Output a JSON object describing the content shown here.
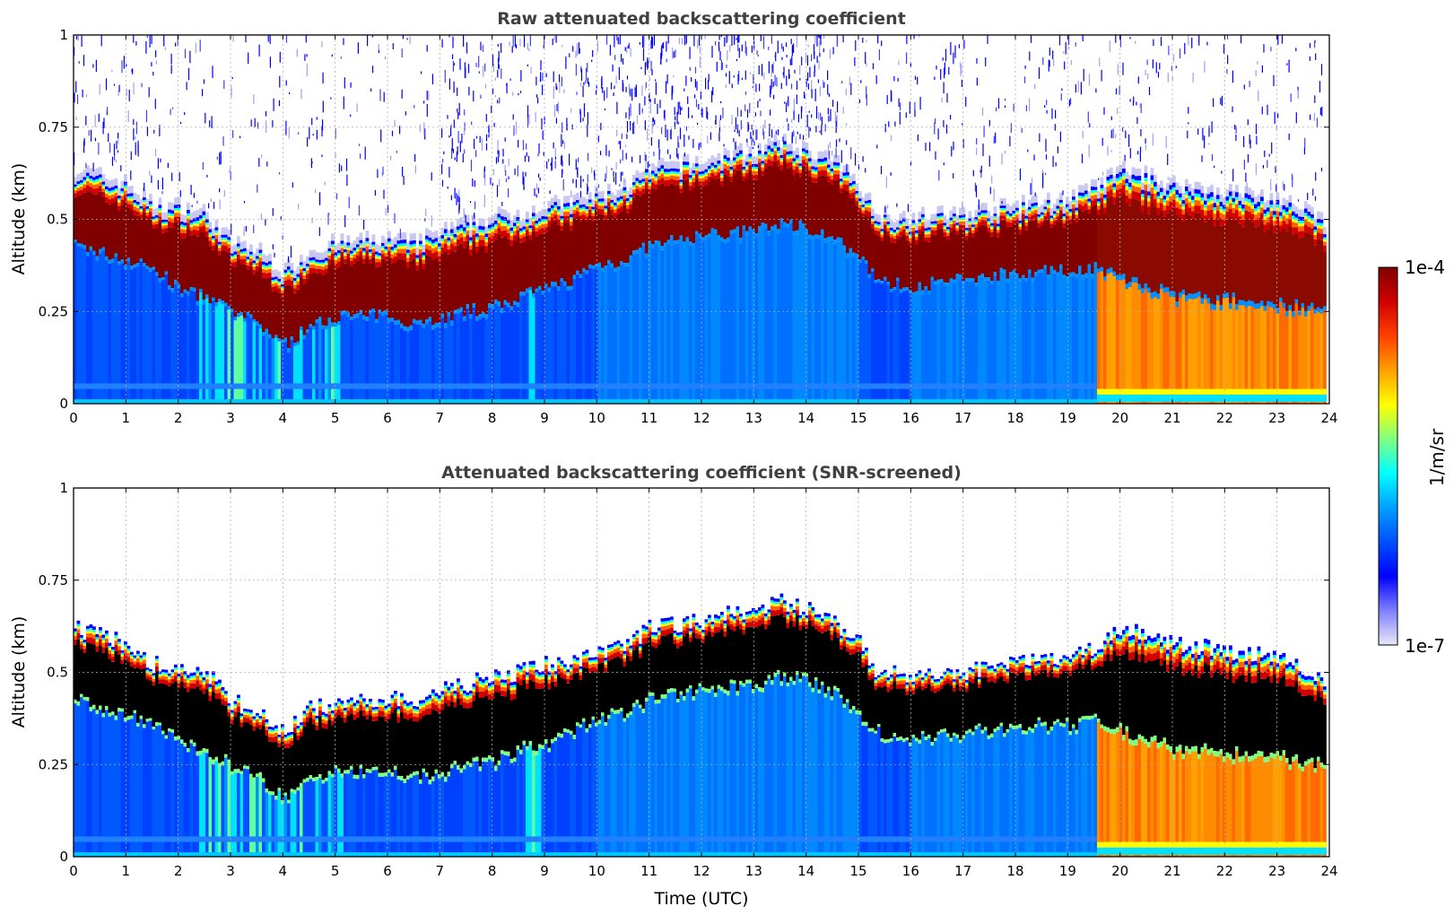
{
  "chart_data": [
    {
      "type": "heatmap",
      "title": "Raw attenuated backscattering coefficient",
      "xlabel": "",
      "ylabel": "Altitude (km)",
      "xlim": [
        0,
        24
      ],
      "ylim": [
        0,
        1
      ],
      "x_ticks": [
        "0",
        "1",
        "2",
        "3",
        "4",
        "5",
        "6",
        "7",
        "8",
        "9",
        "10",
        "11",
        "12",
        "13",
        "14",
        "15",
        "16",
        "17",
        "18",
        "19",
        "20",
        "21",
        "22",
        "23",
        "24"
      ],
      "y_ticks": [
        "0",
        "0.25",
        "0.5",
        "0.75",
        "1"
      ],
      "grid": true,
      "screened": false,
      "layer_top_km": [
        [
          0,
          0.62
        ],
        [
          1,
          0.58
        ],
        [
          1.5,
          0.52
        ],
        [
          2,
          0.52
        ],
        [
          2.5,
          0.5
        ],
        [
          3,
          0.42
        ],
        [
          3.5,
          0.4
        ],
        [
          4,
          0.34
        ],
        [
          4.5,
          0.4
        ],
        [
          5,
          0.42
        ],
        [
          6,
          0.43
        ],
        [
          6.5,
          0.42
        ],
        [
          7,
          0.45
        ],
        [
          7.5,
          0.47
        ],
        [
          8,
          0.49
        ],
        [
          8.5,
          0.5
        ],
        [
          9,
          0.52
        ],
        [
          9.5,
          0.53
        ],
        [
          10,
          0.55
        ],
        [
          10.5,
          0.57
        ],
        [
          11,
          0.62
        ],
        [
          11.5,
          0.63
        ],
        [
          12,
          0.64
        ],
        [
          12.5,
          0.66
        ],
        [
          13,
          0.67
        ],
        [
          13.5,
          0.69
        ],
        [
          14,
          0.67
        ],
        [
          14.5,
          0.64
        ],
        [
          15,
          0.58
        ],
        [
          15.3,
          0.5
        ],
        [
          16,
          0.49
        ],
        [
          17,
          0.5
        ],
        [
          18,
          0.52
        ],
        [
          19,
          0.54
        ],
        [
          19.5,
          0.57
        ],
        [
          20,
          0.62
        ],
        [
          21,
          0.58
        ],
        [
          22,
          0.56
        ],
        [
          23,
          0.54
        ],
        [
          23.9,
          0.48
        ]
      ],
      "layer_bottom_km": [
        [
          0,
          0.42
        ],
        [
          1,
          0.38
        ],
        [
          1.5,
          0.36
        ],
        [
          2,
          0.3
        ],
        [
          2.5,
          0.28
        ],
        [
          3,
          0.24
        ],
        [
          3.5,
          0.21
        ],
        [
          4,
          0.15
        ],
        [
          4.5,
          0.2
        ],
        [
          5,
          0.23
        ],
        [
          6,
          0.23
        ],
        [
          6.5,
          0.21
        ],
        [
          7,
          0.22
        ],
        [
          7.5,
          0.24
        ],
        [
          8,
          0.25
        ],
        [
          8.5,
          0.28
        ],
        [
          9,
          0.3
        ],
        [
          9.5,
          0.33
        ],
        [
          10,
          0.37
        ],
        [
          10.5,
          0.38
        ],
        [
          11,
          0.42
        ],
        [
          11.5,
          0.43
        ],
        [
          12,
          0.45
        ],
        [
          12.5,
          0.45
        ],
        [
          13,
          0.46
        ],
        [
          13.5,
          0.48
        ],
        [
          14,
          0.47
        ],
        [
          14.5,
          0.44
        ],
        [
          15,
          0.38
        ],
        [
          15.5,
          0.32
        ],
        [
          16,
          0.31
        ],
        [
          17,
          0.33
        ],
        [
          18,
          0.35
        ],
        [
          19,
          0.35
        ],
        [
          19.5,
          0.36
        ],
        [
          20,
          0.33
        ],
        [
          21,
          0.28
        ],
        [
          22,
          0.27
        ],
        [
          23,
          0.26
        ],
        [
          23.9,
          0.24
        ]
      ]
    },
    {
      "type": "heatmap",
      "title": "Attenuated backscattering coefficient (SNR-screened)",
      "xlabel": "Time (UTC)",
      "ylabel": "Altitude (km)",
      "xlim": [
        0,
        24
      ],
      "ylim": [
        0,
        1
      ],
      "x_ticks": [
        "0",
        "1",
        "2",
        "3",
        "4",
        "5",
        "6",
        "7",
        "8",
        "9",
        "10",
        "11",
        "12",
        "13",
        "14",
        "15",
        "16",
        "17",
        "18",
        "19",
        "20",
        "21",
        "22",
        "23",
        "24"
      ],
      "y_ticks": [
        "0",
        "0.25",
        "0.5",
        "0.75",
        "1"
      ],
      "grid": true,
      "screened": true,
      "layer_top_km": [
        [
          0,
          0.62
        ],
        [
          1,
          0.58
        ],
        [
          1.5,
          0.52
        ],
        [
          2,
          0.52
        ],
        [
          2.5,
          0.5
        ],
        [
          3,
          0.42
        ],
        [
          3.5,
          0.4
        ],
        [
          4,
          0.34
        ],
        [
          4.5,
          0.4
        ],
        [
          5,
          0.42
        ],
        [
          6,
          0.43
        ],
        [
          6.5,
          0.42
        ],
        [
          7,
          0.45
        ],
        [
          7.5,
          0.47
        ],
        [
          8,
          0.49
        ],
        [
          8.5,
          0.5
        ],
        [
          9,
          0.52
        ],
        [
          9.5,
          0.53
        ],
        [
          10,
          0.55
        ],
        [
          10.5,
          0.57
        ],
        [
          11,
          0.62
        ],
        [
          11.5,
          0.63
        ],
        [
          12,
          0.64
        ],
        [
          12.5,
          0.66
        ],
        [
          13,
          0.67
        ],
        [
          13.5,
          0.69
        ],
        [
          14,
          0.67
        ],
        [
          14.5,
          0.64
        ],
        [
          15,
          0.58
        ],
        [
          15.3,
          0.5
        ],
        [
          16,
          0.49
        ],
        [
          17,
          0.5
        ],
        [
          18,
          0.52
        ],
        [
          19,
          0.54
        ],
        [
          19.5,
          0.57
        ],
        [
          20,
          0.62
        ],
        [
          21,
          0.58
        ],
        [
          22,
          0.56
        ],
        [
          23,
          0.54
        ],
        [
          23.9,
          0.48
        ]
      ],
      "layer_bottom_km": [
        [
          0,
          0.42
        ],
        [
          1,
          0.38
        ],
        [
          1.5,
          0.36
        ],
        [
          2,
          0.3
        ],
        [
          2.5,
          0.28
        ],
        [
          3,
          0.24
        ],
        [
          3.5,
          0.21
        ],
        [
          4,
          0.15
        ],
        [
          4.5,
          0.2
        ],
        [
          5,
          0.23
        ],
        [
          6,
          0.23
        ],
        [
          6.5,
          0.21
        ],
        [
          7,
          0.22
        ],
        [
          7.5,
          0.24
        ],
        [
          8,
          0.25
        ],
        [
          8.5,
          0.28
        ],
        [
          9,
          0.3
        ],
        [
          9.5,
          0.33
        ],
        [
          10,
          0.37
        ],
        [
          10.5,
          0.38
        ],
        [
          11,
          0.42
        ],
        [
          11.5,
          0.43
        ],
        [
          12,
          0.45
        ],
        [
          12.5,
          0.45
        ],
        [
          13,
          0.46
        ],
        [
          13.5,
          0.48
        ],
        [
          14,
          0.47
        ],
        [
          14.5,
          0.44
        ],
        [
          15,
          0.38
        ],
        [
          15.5,
          0.32
        ],
        [
          16,
          0.31
        ],
        [
          17,
          0.33
        ],
        [
          18,
          0.35
        ],
        [
          19,
          0.35
        ],
        [
          19.5,
          0.36
        ],
        [
          20,
          0.33
        ],
        [
          21,
          0.28
        ],
        [
          22,
          0.27
        ],
        [
          23,
          0.26
        ],
        [
          23.9,
          0.24
        ]
      ]
    }
  ],
  "colorbar": {
    "label": "1/m/sr",
    "max_label": "1e-4",
    "min_label": "1e-7",
    "colormap": [
      "#e8e8f8",
      "#8080ff",
      "#0000ff",
      "#0050ff",
      "#00a0ff",
      "#00ffff",
      "#80ff80",
      "#ffff00",
      "#ffa000",
      "#ff4000",
      "#d00000",
      "#800000"
    ]
  }
}
